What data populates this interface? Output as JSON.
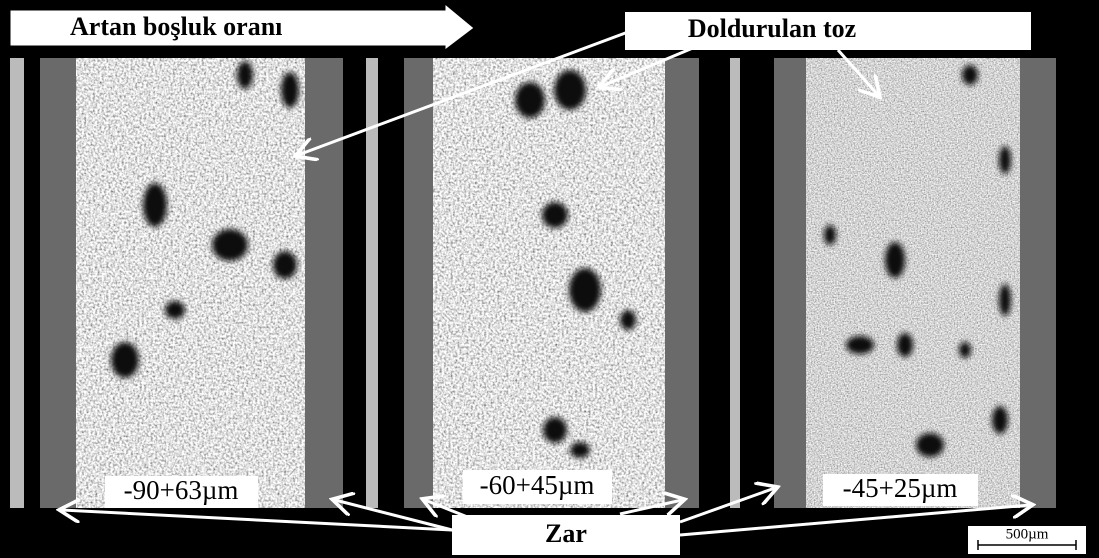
{
  "header": {
    "arrow_label": "Artan boşluk oranı"
  },
  "callouts": {
    "powder": "Doldurulan toz",
    "membrane": "Zar"
  },
  "panels": [
    {
      "label": "-90+63µm"
    },
    {
      "label": "-60+45µm"
    },
    {
      "label": "-45+25µm"
    }
  ],
  "scale_bar": {
    "label": "500µm"
  }
}
